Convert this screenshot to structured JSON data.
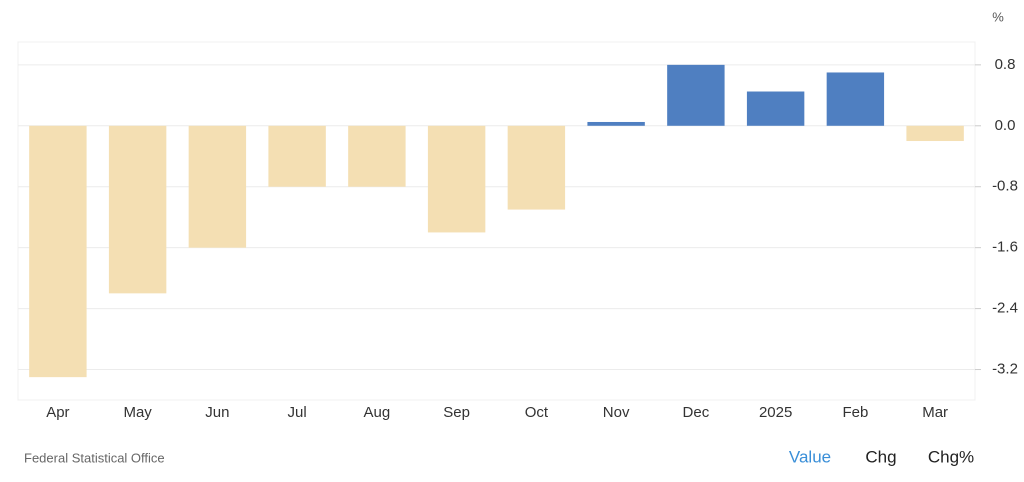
{
  "chart_data": {
    "type": "bar",
    "categories": [
      "Apr",
      "May",
      "Jun",
      "Jul",
      "Aug",
      "Sep",
      "Oct",
      "Nov",
      "Dec",
      "2025",
      "Feb",
      "Mar"
    ],
    "values": [
      -3.3,
      -2.2,
      -1.6,
      -0.8,
      -0.8,
      -1.4,
      -1.1,
      0.05,
      0.8,
      0.45,
      0.7,
      -0.2
    ],
    "positive_color": "#4f7fc1",
    "negative_color": "#f4dfb3",
    "ylim": [
      -3.6,
      1.1
    ],
    "yticks": [
      0.8,
      {
        "value": 0,
        "label": "0.0"
      },
      -0.8,
      -1.6,
      -2.4,
      -3.2
    ],
    "y_unit": "%",
    "grid": true,
    "y_axis_side": "right"
  },
  "source": "Federal Statistical Office",
  "controls": [
    "Value",
    "Chg",
    "Chg%"
  ]
}
